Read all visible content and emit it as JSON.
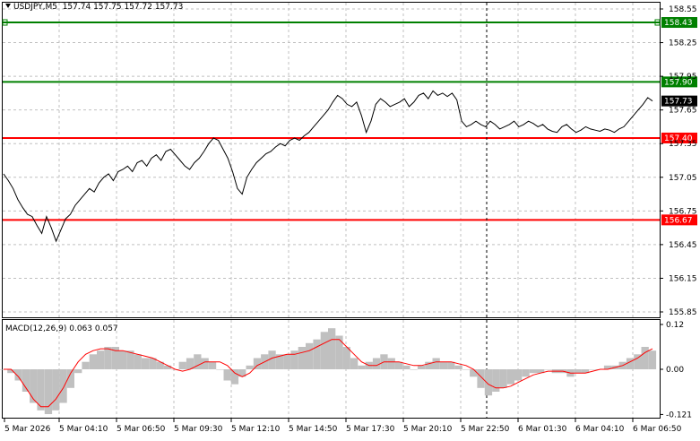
{
  "header": {
    "symbol": "USDJPY,M5",
    "open": "157.74",
    "high": "157.75",
    "low": "157.72",
    "close": "157.73"
  },
  "macd": {
    "label": "MACD(12,26,9)",
    "main": "0.063",
    "signal": "0.057",
    "axis_labels": [
      "0.12",
      "0.00",
      "-0.121"
    ]
  },
  "colors": {
    "price_line": "#000000",
    "support": "#ff0000",
    "resistance": "#008000",
    "histogram": "#c0c0c0",
    "signal": "#ff0000",
    "grid": "#c0c0c0",
    "current_price_bg": "#000000"
  },
  "price_axis": [
    "158.55",
    "158.25",
    "157.95",
    "157.65",
    "157.35",
    "157.05",
    "156.75",
    "156.45",
    "156.15",
    "155.85"
  ],
  "levels": [
    {
      "label": "158.43",
      "kind": "resistance",
      "value": 158.43
    },
    {
      "label": "157.90",
      "kind": "resistance",
      "value": 157.9
    },
    {
      "label": "157.40",
      "kind": "support",
      "value": 157.4
    },
    {
      "label": "156.67",
      "kind": "support",
      "value": 156.67
    }
  ],
  "current_price": {
    "label": "157.73",
    "value": 157.73
  },
  "time_axis": [
    "5 Mar 2026",
    "5 Mar 04:10",
    "5 Mar 06:50",
    "5 Mar 09:30",
    "5 Mar 12:10",
    "5 Mar 14:50",
    "5 Mar 17:30",
    "5 Mar 20:10",
    "5 Mar 22:50",
    "6 Mar 01:30",
    "6 Mar 04:10",
    "6 Mar 06:50"
  ],
  "chart_data": {
    "type": "line",
    "ylim": [
      155.8,
      158.6
    ],
    "macd_ylim": [
      -0.121,
      0.12
    ],
    "price": [
      157.08,
      157.02,
      156.95,
      156.85,
      156.78,
      156.72,
      156.7,
      156.62,
      156.55,
      156.7,
      156.6,
      156.48,
      156.58,
      156.68,
      156.72,
      156.8,
      156.85,
      156.9,
      156.95,
      156.92,
      157.0,
      157.05,
      157.08,
      157.02,
      157.1,
      157.12,
      157.15,
      157.1,
      157.18,
      157.2,
      157.15,
      157.22,
      157.25,
      157.2,
      157.28,
      157.3,
      157.25,
      157.2,
      157.15,
      157.12,
      157.18,
      157.22,
      157.28,
      157.35,
      157.4,
      157.38,
      157.3,
      157.22,
      157.1,
      156.95,
      156.9,
      157.05,
      157.12,
      157.18,
      157.22,
      157.26,
      157.28,
      157.32,
      157.35,
      157.33,
      157.38,
      157.4,
      157.38,
      157.42,
      157.45,
      157.5,
      157.55,
      157.6,
      157.65,
      157.72,
      157.78,
      157.75,
      157.7,
      157.68,
      157.72,
      157.6,
      157.45,
      157.55,
      157.7,
      157.75,
      157.72,
      157.68,
      157.7,
      157.72,
      157.75,
      157.68,
      157.72,
      157.78,
      157.8,
      157.75,
      157.82,
      157.78,
      157.8,
      157.77,
      157.8,
      157.74,
      157.55,
      157.5,
      157.52,
      157.55,
      157.52,
      157.5,
      157.55,
      157.52,
      157.48,
      157.5,
      157.52,
      157.55,
      157.5,
      157.52,
      157.55,
      157.53,
      157.5,
      157.52,
      157.48,
      157.46,
      157.45,
      157.5,
      157.52,
      157.48,
      157.45,
      157.47,
      157.5,
      157.48,
      157.47,
      157.46,
      157.48,
      157.47,
      157.45,
      157.48,
      157.5,
      157.55,
      157.6,
      157.65,
      157.7,
      157.76,
      157.73
    ],
    "macd_histogram": [
      0.0,
      -0.01,
      -0.03,
      -0.06,
      -0.09,
      -0.11,
      -0.12,
      -0.11,
      -0.09,
      -0.05,
      -0.01,
      0.02,
      0.04,
      0.05,
      0.06,
      0.06,
      0.05,
      0.05,
      0.04,
      0.03,
      0.03,
      0.02,
      0.01,
      0.0,
      0.02,
      0.03,
      0.04,
      0.03,
      0.02,
      0.0,
      -0.03,
      -0.04,
      -0.02,
      0.01,
      0.03,
      0.04,
      0.05,
      0.04,
      0.04,
      0.05,
      0.06,
      0.07,
      0.08,
      0.1,
      0.11,
      0.09,
      0.06,
      0.03,
      0.01,
      0.02,
      0.03,
      0.04,
      0.03,
      0.02,
      0.01,
      0.0,
      0.01,
      0.02,
      0.03,
      0.02,
      0.02,
      0.01,
      0.0,
      -0.02,
      -0.05,
      -0.07,
      -0.06,
      -0.05,
      -0.04,
      -0.03,
      -0.02,
      -0.01,
      -0.01,
      0.0,
      -0.01,
      -0.01,
      -0.02,
      -0.01,
      -0.01,
      0.0,
      0.0,
      0.01,
      0.01,
      0.02,
      0.03,
      0.04,
      0.06,
      0.05
    ],
    "macd_signal": [
      0.0,
      0.0,
      -0.02,
      -0.05,
      -0.08,
      -0.1,
      -0.1,
      -0.08,
      -0.05,
      -0.01,
      0.02,
      0.04,
      0.05,
      0.055,
      0.055,
      0.05,
      0.05,
      0.045,
      0.04,
      0.035,
      0.03,
      0.02,
      0.01,
      0.0,
      -0.005,
      0.0,
      0.01,
      0.02,
      0.02,
      0.02,
      0.01,
      -0.01,
      -0.02,
      -0.01,
      0.01,
      0.02,
      0.03,
      0.035,
      0.04,
      0.04,
      0.045,
      0.05,
      0.06,
      0.07,
      0.08,
      0.08,
      0.06,
      0.04,
      0.02,
      0.01,
      0.01,
      0.02,
      0.02,
      0.02,
      0.015,
      0.01,
      0.01,
      0.015,
      0.02,
      0.02,
      0.02,
      0.015,
      0.01,
      0.0,
      -0.02,
      -0.04,
      -0.05,
      -0.05,
      -0.045,
      -0.035,
      -0.025,
      -0.015,
      -0.01,
      -0.005,
      -0.005,
      -0.005,
      -0.01,
      -0.01,
      -0.01,
      -0.005,
      0.0,
      0.0,
      0.005,
      0.01,
      0.02,
      0.03,
      0.045,
      0.055
    ]
  }
}
